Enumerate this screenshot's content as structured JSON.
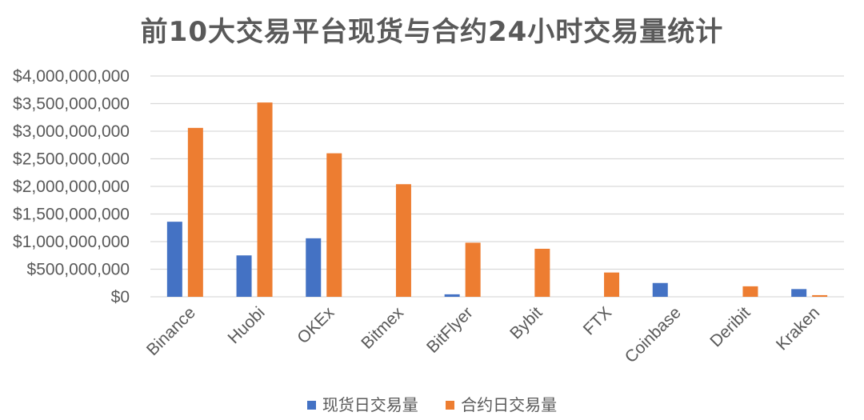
{
  "chart_data": {
    "type": "bar",
    "title": "前10大交易平台现货与合约24小时交易量统计",
    "categories": [
      "Binance",
      "Huobi",
      "OKEx",
      "Bitmex",
      "BitFlyer",
      "Bybit",
      "FTX",
      "Coinbase",
      "Deribit",
      "Kraken"
    ],
    "series": [
      {
        "name": "现货日交易量",
        "color": "#4472C4",
        "values": [
          1360000000,
          750000000,
          1060000000,
          0,
          45000000,
          0,
          0,
          250000000,
          0,
          140000000
        ]
      },
      {
        "name": "合约日交易量",
        "color": "#ED7D31",
        "values": [
          3060000000,
          3520000000,
          2600000000,
          2040000000,
          980000000,
          870000000,
          440000000,
          0,
          190000000,
          30000000
        ]
      }
    ],
    "ylim": [
      0,
      4000000000
    ],
    "yticks": [
      "$0",
      "$500,000,000",
      "$1,000,000,000",
      "$1,500,000,000",
      "$2,000,000,000",
      "$2,500,000,000",
      "$3,000,000,000",
      "$3,500,000,000",
      "$4,000,000,000"
    ],
    "ytick_values": [
      0,
      500000000,
      1000000000,
      1500000000,
      2000000000,
      2500000000,
      3000000000,
      3500000000,
      4000000000
    ],
    "grid": true,
    "legend": "bottom",
    "gridline_color": "#D9D9D9"
  }
}
